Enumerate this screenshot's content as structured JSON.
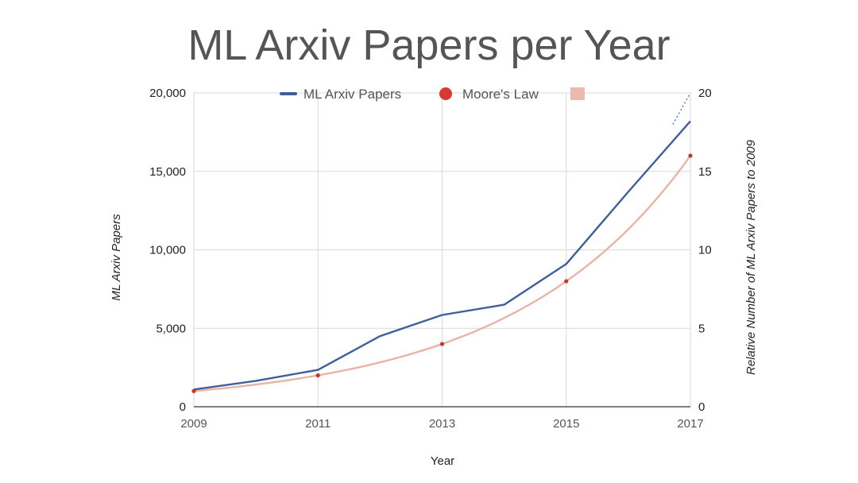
{
  "chart_data": {
    "type": "line",
    "title": "ML Arxiv Papers per Year",
    "xlabel": "Year",
    "ylabel": "ML Arxiv Papers",
    "ylabel_right": "Relative Number of ML Arxiv Papers  to 2009",
    "x": [
      2009,
      2010,
      2011,
      2012,
      2013,
      2014,
      2015,
      2016,
      2017
    ],
    "x_ticks": [
      "2009",
      "2011",
      "2013",
      "2015",
      "2017"
    ],
    "xlim": [
      2009,
      2017
    ],
    "ylim": [
      0,
      20000
    ],
    "y_ticks": [
      "0",
      "5,000",
      "10,000",
      "15,000",
      "20,000"
    ],
    "ylim_right": [
      0,
      20
    ],
    "y_ticks_right": [
      "0",
      "5",
      "10",
      "15",
      "20"
    ],
    "grid": true,
    "legend_position": "top",
    "series": [
      {
        "name": "ML Arxiv Papers",
        "axis": "left",
        "color": "#3f5f9a",
        "values": [
          1100,
          1650,
          2350,
          4500,
          5850,
          6500,
          9100,
          13700,
          18200
        ]
      },
      {
        "name": "Moore's Law",
        "axis": "right",
        "style": "points",
        "color": "#c0392b",
        "x": [
          2009,
          2011,
          2013,
          2015,
          2017
        ],
        "values": [
          1,
          2,
          4,
          8,
          16
        ]
      },
      {
        "name": "",
        "axis": "right",
        "style": "smooth-line",
        "color": "#e8b4a6",
        "x": [
          2009,
          2010,
          2011,
          2012,
          2013,
          2014,
          2015,
          2016,
          2017
        ],
        "values": [
          1,
          1.41,
          2,
          2.83,
          4,
          5.66,
          8,
          11.31,
          16
        ]
      }
    ]
  }
}
